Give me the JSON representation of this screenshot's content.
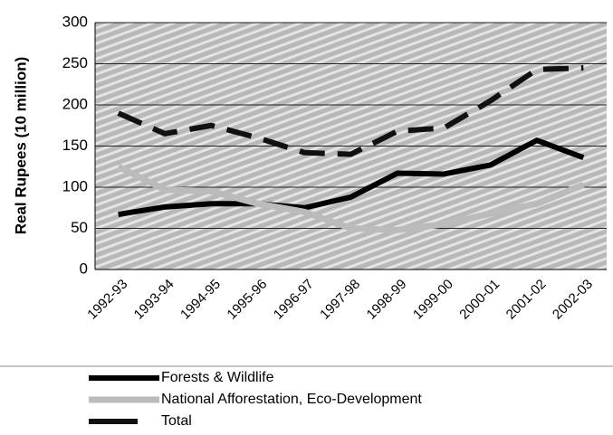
{
  "chart_data": {
    "type": "line",
    "ylabel": "Real Rupees (10 million)",
    "categories": [
      "1992-93",
      "1993-94",
      "1994-95",
      "1995-96",
      "1996-97",
      "1997-98",
      "1998-99",
      "1999-00",
      "2000-01",
      "2001-02",
      "2002-03"
    ],
    "series": [
      {
        "name": "Forests & Wildlife",
        "color": "#000000",
        "style": "solid",
        "values": [
          67,
          76,
          80,
          80,
          75,
          88,
          117,
          116,
          127,
          157,
          136
        ]
      },
      {
        "name": "National Afforestation, Eco-Development",
        "color": "#bbbbbb",
        "style": "dotted",
        "values": [
          125,
          97,
          95,
          80,
          70,
          50,
          48,
          55,
          68,
          80,
          103
        ]
      },
      {
        "name": "Total",
        "color": "#111111",
        "style": "dashed",
        "values": [
          190,
          165,
          175,
          160,
          142,
          140,
          168,
          172,
          205,
          243,
          245
        ]
      }
    ],
    "ylim": [
      0,
      300
    ],
    "yticks": [
      0,
      50,
      100,
      150,
      200,
      250,
      300
    ],
    "grid": true,
    "legend": "bottom"
  }
}
